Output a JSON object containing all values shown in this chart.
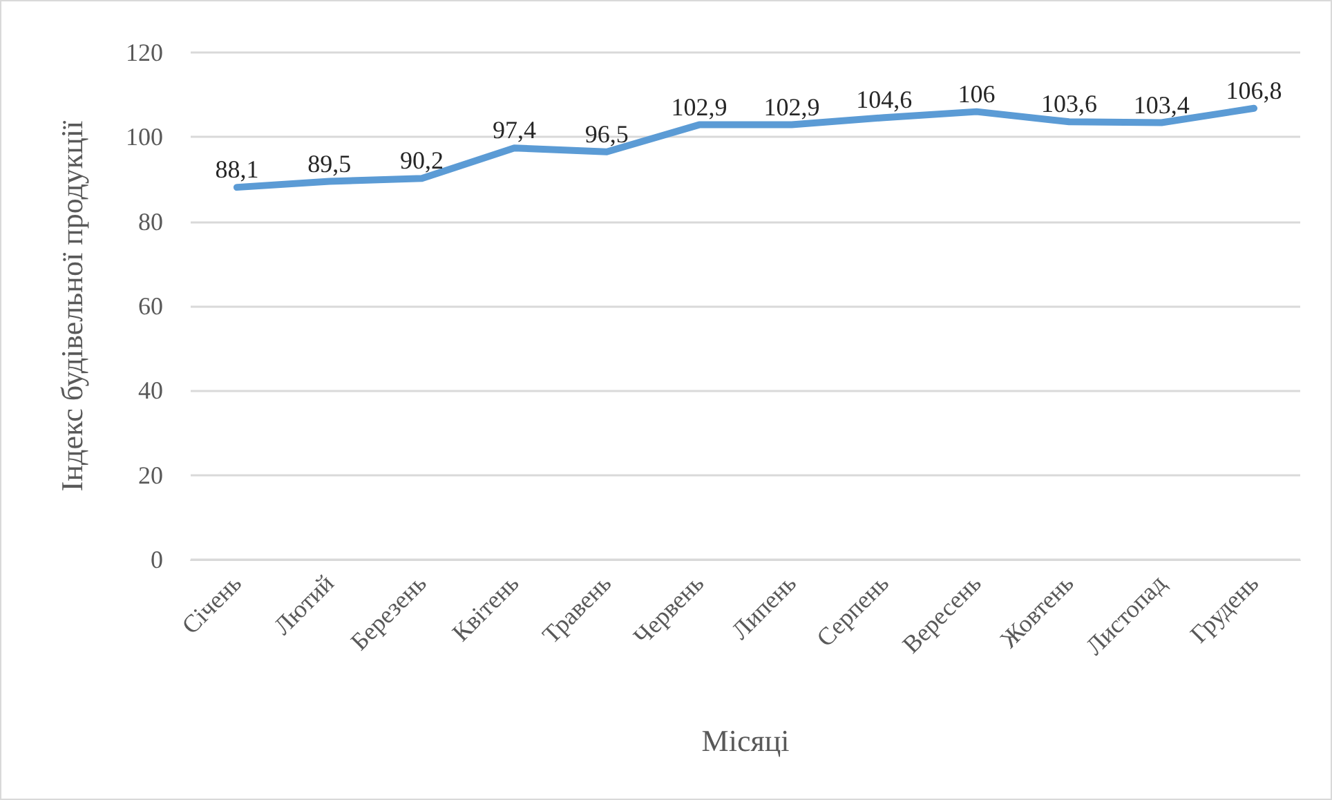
{
  "chart_data": {
    "type": "line",
    "xlabel": "Місяці",
    "ylabel": "Індекс будівельної продукції",
    "categories": [
      "Січень",
      "Лютий",
      "Березень",
      "Квітень",
      "Травень",
      "Червень",
      "Липень",
      "Серпень",
      "Вересень",
      "Жовтень",
      "Листопад",
      "Грудень"
    ],
    "series": [
      {
        "color": "#5b9bd5",
        "values": [
          88.1,
          89.5,
          90.2,
          97.4,
          96.5,
          102.9,
          102.9,
          104.6,
          106,
          103.6,
          103.4,
          106.8
        ],
        "value_labels": [
          "88,1",
          "89,5",
          "90,2",
          "97,4",
          "96,5",
          "102,9",
          "102,9",
          "104,6",
          "106",
          "103,6",
          "103,4",
          "106,8"
        ]
      }
    ],
    "ylim": [
      0,
      120
    ],
    "yticks": [
      0,
      20,
      40,
      60,
      80,
      100,
      120
    ],
    "grid": "y",
    "marker": "none",
    "line_style": "solid"
  }
}
